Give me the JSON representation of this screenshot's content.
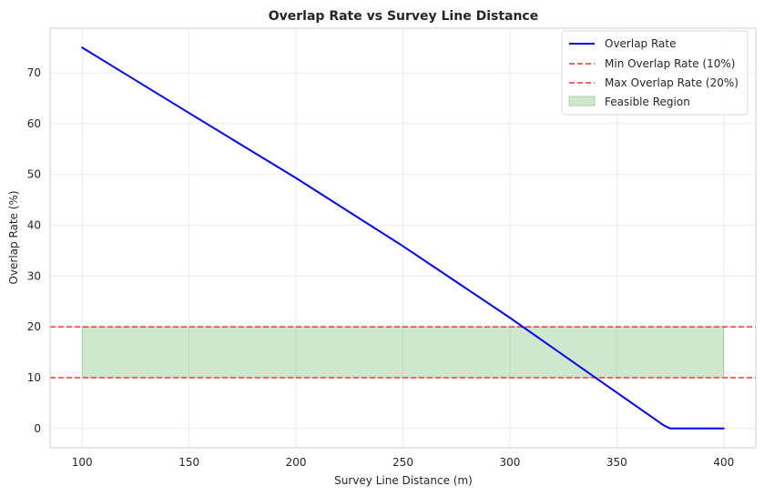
{
  "chart_data": {
    "type": "line",
    "title": "Overlap Rate vs Survey Line Distance",
    "xlabel": "Survey Line Distance (m)",
    "ylabel": "Overlap Rate (%)",
    "xlim": [
      85,
      415
    ],
    "ylim": [
      -3.8,
      78.8
    ],
    "x_ticks": [
      100,
      150,
      200,
      250,
      300,
      350,
      400
    ],
    "y_ticks": [
      0,
      10,
      20,
      30,
      40,
      50,
      60,
      70
    ],
    "grid": true,
    "legend_position": "top-right",
    "series": [
      {
        "name": "Overlap Rate",
        "kind": "line",
        "color": "#0000ff",
        "x": [
          100,
          150,
          200,
          250,
          300,
          340,
          372,
          375,
          400
        ],
        "y": [
          75.0,
          62.1,
          49.3,
          35.9,
          21.8,
          10.0,
          0.6,
          0.0,
          0.0
        ]
      },
      {
        "name": "Min Overlap Rate (10%)",
        "kind": "hline",
        "y": 10,
        "color": "#ff3333",
        "style": "dashed"
      },
      {
        "name": "Max Overlap Rate (20%)",
        "kind": "hline",
        "y": 20,
        "color": "#ff3333",
        "style": "dashed"
      },
      {
        "name": "Feasible Region",
        "kind": "band",
        "x_range": [
          100,
          400
        ],
        "y_range": [
          10,
          20
        ],
        "color": "#2ca02c"
      }
    ]
  }
}
